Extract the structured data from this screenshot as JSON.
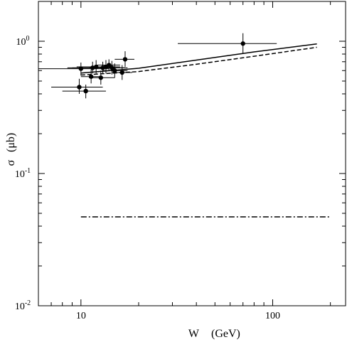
{
  "chart_data": {
    "type": "scatter",
    "xscale": "log",
    "yscale": "log",
    "xlim": [
      6,
      240
    ],
    "ylim": [
      0.01,
      2.0
    ],
    "xlabel": "W (GeV)",
    "xlabel_parts": [
      "W",
      "(GeV)"
    ],
    "ylabel": "σ (μb)",
    "ylabel_parts": [
      "σ",
      "(μb)"
    ],
    "grid": false,
    "x_major_ticks": [
      {
        "value": 10,
        "label": "10"
      },
      {
        "value": 100,
        "label": "100"
      }
    ],
    "y_major_ticks": [
      {
        "value": 0.01,
        "base": "10",
        "exp": "-2"
      },
      {
        "value": 0.1,
        "base": "10",
        "exp": "-1"
      },
      {
        "value": 1.0,
        "base": "10",
        "exp": "0"
      }
    ],
    "series": [
      {
        "kind": "points",
        "points": [
          {
            "x": 9.8,
            "y": 0.45,
            "xerr": [
              7.0,
              13.0
            ],
            "yerr": [
              0.4,
              0.52
            ]
          },
          {
            "x": 10.0,
            "y": 0.62,
            "xerr": [
              6.0,
              14.0
            ],
            "yerr": [
              0.55,
              0.69
            ]
          },
          {
            "x": 10.6,
            "y": 0.42,
            "xerr": [
              8.0,
              13.5
            ],
            "yerr": [
              0.37,
              0.47
            ]
          },
          {
            "x": 11.3,
            "y": 0.54,
            "xerr": [
              10.0,
              12.7
            ],
            "yerr": [
              0.48,
              0.61
            ]
          },
          {
            "x": 11.5,
            "y": 0.63,
            "xerr": [
              8.5,
              15.0
            ],
            "yerr": [
              0.57,
              0.7
            ]
          },
          {
            "x": 12.0,
            "y": 0.64,
            "xerr": [
              9.5,
              14.5
            ],
            "yerr": [
              0.57,
              0.72
            ]
          },
          {
            "x": 12.7,
            "y": 0.53,
            "xerr": [
              11.0,
              15.0
            ],
            "yerr": [
              0.47,
              0.6
            ]
          },
          {
            "x": 13.0,
            "y": 0.63,
            "xerr": [
              9.0,
              17.0
            ],
            "yerr": [
              0.57,
              0.7
            ]
          },
          {
            "x": 13.5,
            "y": 0.64,
            "xerr": [
              11.5,
              16.0
            ],
            "yerr": [
              0.57,
              0.72
            ]
          },
          {
            "x": 14.0,
            "y": 0.66,
            "xerr": [
              12.0,
              16.0
            ],
            "yerr": [
              0.6,
              0.73
            ]
          },
          {
            "x": 14.5,
            "y": 0.63,
            "xerr": [
              11.0,
              17.5
            ],
            "yerr": [
              0.56,
              0.71
            ]
          },
          {
            "x": 15.0,
            "y": 0.6,
            "xerr": [
              13.0,
              17.5
            ],
            "yerr": [
              0.53,
              0.68
            ]
          },
          {
            "x": 16.4,
            "y": 0.58,
            "xerr": [
              14.5,
              18.5
            ],
            "yerr": [
              0.51,
              0.66
            ]
          },
          {
            "x": 17.0,
            "y": 0.73,
            "xerr": [
              15.0,
              19.0
            ],
            "yerr": [
              0.64,
              0.84
            ]
          },
          {
            "x": 70.0,
            "y": 0.96,
            "xerr": [
              32.0,
              105.0
            ],
            "yerr": [
              0.8,
              1.15
            ]
          }
        ]
      },
      {
        "kind": "line",
        "style": "solid",
        "x": [
          10,
          20,
          40,
          80,
          170
        ],
        "y": [
          0.575,
          0.625,
          0.72,
          0.83,
          0.955
        ]
      },
      {
        "kind": "line",
        "style": "dashed",
        "x": [
          10,
          20,
          40,
          80,
          170
        ],
        "y": [
          0.555,
          0.59,
          0.67,
          0.77,
          0.9
        ]
      },
      {
        "kind": "line",
        "style": "dashdot",
        "x": [
          10,
          200
        ],
        "y": [
          0.047,
          0.047
        ]
      }
    ]
  }
}
